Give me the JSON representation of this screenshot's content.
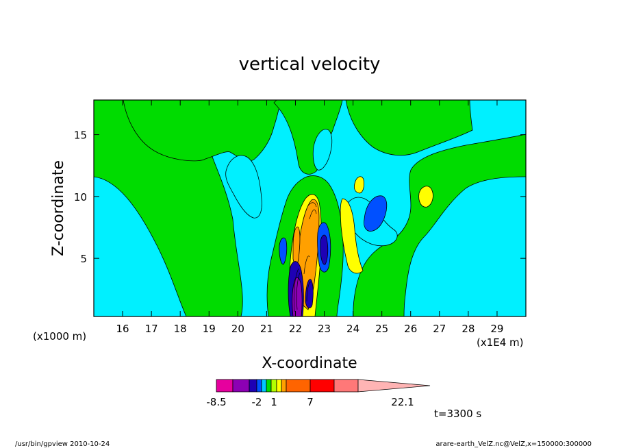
{
  "chart_data": {
    "type": "heatmap",
    "title": "vertical velocity",
    "xlabel": "X-coordinate",
    "ylabel": "Z-coordinate",
    "x_unit_label": "(x1E4 m)",
    "y_unit_label": "(x1000 m)",
    "xlim": [
      15.0,
      30.0
    ],
    "ylim": [
      0.3,
      17.8
    ],
    "x_ticks": [
      {
        "value": 16,
        "label": "16"
      },
      {
        "value": 17,
        "label": "17"
      },
      {
        "value": 18,
        "label": "18"
      },
      {
        "value": 19,
        "label": "19"
      },
      {
        "value": 20,
        "label": "20"
      },
      {
        "value": 21,
        "label": "21"
      },
      {
        "value": 22,
        "label": "22"
      },
      {
        "value": 23,
        "label": "23"
      },
      {
        "value": 24,
        "label": "24"
      },
      {
        "value": 25,
        "label": "25"
      },
      {
        "value": 26,
        "label": "26"
      },
      {
        "value": 27,
        "label": "27"
      },
      {
        "value": 28,
        "label": "28"
      },
      {
        "value": 29,
        "label": "29"
      }
    ],
    "y_ticks": [
      {
        "value": 5,
        "label": "5"
      },
      {
        "value": 10,
        "label": "10"
      },
      {
        "value": 15,
        "label": "15"
      }
    ],
    "colorbar": {
      "colors": [
        "#e6009e",
        "#8c00b4",
        "#1e00b4",
        "#0050ff",
        "#00c8ff",
        "#00dc00",
        "#b4ff00",
        "#ffff00",
        "#ffa000",
        "#ff6400",
        "#ff0000",
        "#ff7878",
        "#ffb4b4"
      ],
      "labels": [
        {
          "value": -8.5,
          "label": "-8.5"
        },
        {
          "value": -2,
          "label": "-2"
        },
        {
          "value": 1,
          "label": "1"
        },
        {
          "value": 7,
          "label": "7"
        },
        {
          "value": 22.1,
          "label": "22.1"
        }
      ]
    },
    "fields": {
      "cyan": "#00f0ff",
      "green": "#00dc00",
      "yellow": "#ffff00",
      "orange": "#ffa000",
      "blue": "#0050ff",
      "darkblue": "#1e00b4",
      "purple": "#8c00b4",
      "magenta": "#e6009e"
    },
    "time_label": "t=3300 s"
  },
  "footer": {
    "left": "/usr/bin/gpview   2010-10-24",
    "right": "arare-earth_VelZ.nc@VelZ,x=150000:300000"
  }
}
